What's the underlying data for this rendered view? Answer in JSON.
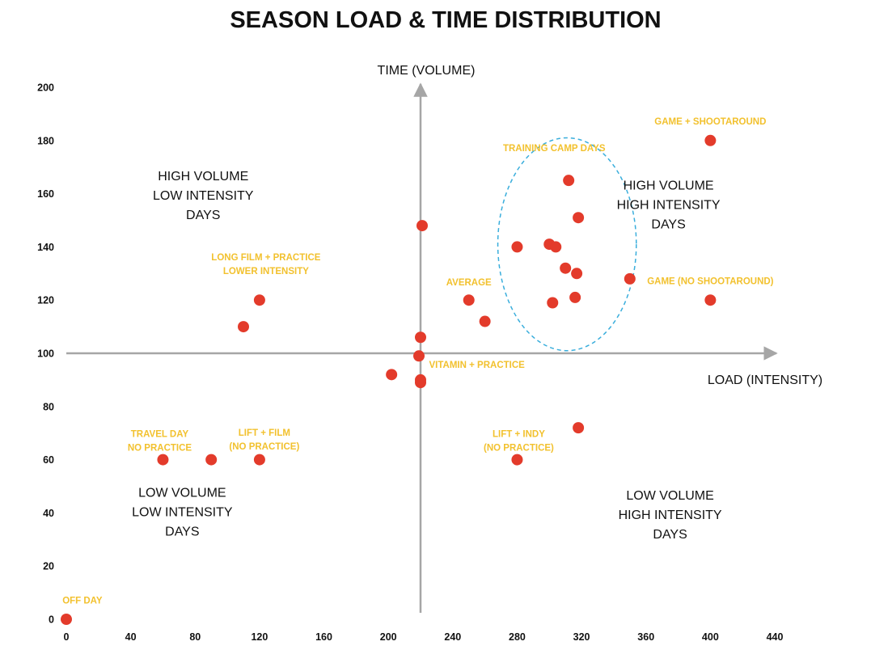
{
  "chart_data": {
    "type": "scatter",
    "title": "SEASON LOAD & TIME DISTRIBUTION",
    "xlabel": "LOAD (INTENSITY)",
    "ylabel": "TIME (VOLUME)",
    "xlim": [
      0,
      440
    ],
    "ylim": [
      0,
      200
    ],
    "x_ticks": [
      0,
      40,
      80,
      120,
      160,
      200,
      240,
      280,
      320,
      360,
      400,
      440
    ],
    "y_ticks": [
      0,
      20,
      40,
      60,
      80,
      100,
      120,
      140,
      160,
      180,
      200
    ],
    "crosshair": {
      "x": 220,
      "y": 100
    },
    "colors": {
      "points": "#e33b2b",
      "annotations": "#f2c12e",
      "axes": "#a6a6a6",
      "cluster": "#3aaedc"
    },
    "points": [
      {
        "x": 0,
        "y": 0
      },
      {
        "x": 60,
        "y": 60
      },
      {
        "x": 90,
        "y": 60
      },
      {
        "x": 120,
        "y": 60
      },
      {
        "x": 110,
        "y": 110
      },
      {
        "x": 120,
        "y": 120
      },
      {
        "x": 202,
        "y": 92
      },
      {
        "x": 220,
        "y": 90
      },
      {
        "x": 220,
        "y": 89
      },
      {
        "x": 219,
        "y": 99
      },
      {
        "x": 220,
        "y": 106
      },
      {
        "x": 221,
        "y": 148
      },
      {
        "x": 250,
        "y": 120
      },
      {
        "x": 260,
        "y": 112
      },
      {
        "x": 280,
        "y": 140
      },
      {
        "x": 280,
        "y": 60
      },
      {
        "x": 300,
        "y": 141
      },
      {
        "x": 304,
        "y": 140
      },
      {
        "x": 310,
        "y": 132
      },
      {
        "x": 312,
        "y": 165
      },
      {
        "x": 318,
        "y": 151
      },
      {
        "x": 317,
        "y": 130
      },
      {
        "x": 302,
        "y": 119
      },
      {
        "x": 316,
        "y": 121
      },
      {
        "x": 318,
        "y": 72
      },
      {
        "x": 350,
        "y": 128
      },
      {
        "x": 400,
        "y": 180
      },
      {
        "x": 400,
        "y": 120
      }
    ],
    "annotations": [
      {
        "lines": [
          "GAME + SHOOTAROUND"
        ],
        "x": 400,
        "y": 186
      },
      {
        "lines": [
          "TRAINING CAMP DAYS"
        ],
        "x": 303,
        "y": 176
      },
      {
        "lines": [
          "LONG FILM + PRACTICE",
          "LOWER INTENSITY"
        ],
        "x": 124,
        "y": 135
      },
      {
        "lines": [
          "AVERAGE"
        ],
        "x": 250,
        "y": 125.5
      },
      {
        "lines": [
          "GAME (NO SHOOTAROUND)"
        ],
        "x": 400,
        "y": 126
      },
      {
        "lines": [
          "VITAMIN + PRACTICE"
        ],
        "x": 255,
        "y": 94.5
      },
      {
        "lines": [
          "TRAVEL DAY",
          "NO PRACTICE"
        ],
        "x": 58,
        "y": 68.5
      },
      {
        "lines": [
          "LIFT + FILM",
          "(NO PRACTICE)"
        ],
        "x": 123,
        "y": 69
      },
      {
        "lines": [
          "LIFT + INDY",
          "(NO PRACTICE)"
        ],
        "x": 281,
        "y": 68.5
      },
      {
        "lines": [
          "OFF DAY"
        ],
        "x": 10,
        "y": 6
      }
    ],
    "quadrant_labels": [
      {
        "lines": [
          "HIGH VOLUME",
          "LOW INTENSITY",
          "DAYS"
        ],
        "x": 85,
        "y": 165
      },
      {
        "lines": [
          "HIGH VOLUME",
          "HIGH INTENSITY",
          "DAYS"
        ],
        "x": 374,
        "y": 161.5
      },
      {
        "lines": [
          "LOW VOLUME",
          "LOW INTENSITY",
          "DAYS"
        ],
        "x": 72,
        "y": 46
      },
      {
        "lines": [
          "LOW VOLUME",
          "HIGH INTENSITY",
          "DAYS"
        ],
        "x": 375,
        "y": 45
      }
    ],
    "cluster_ellipse": {
      "cx": 311,
      "cy": 141,
      "rx": 43,
      "ry": 40
    }
  }
}
